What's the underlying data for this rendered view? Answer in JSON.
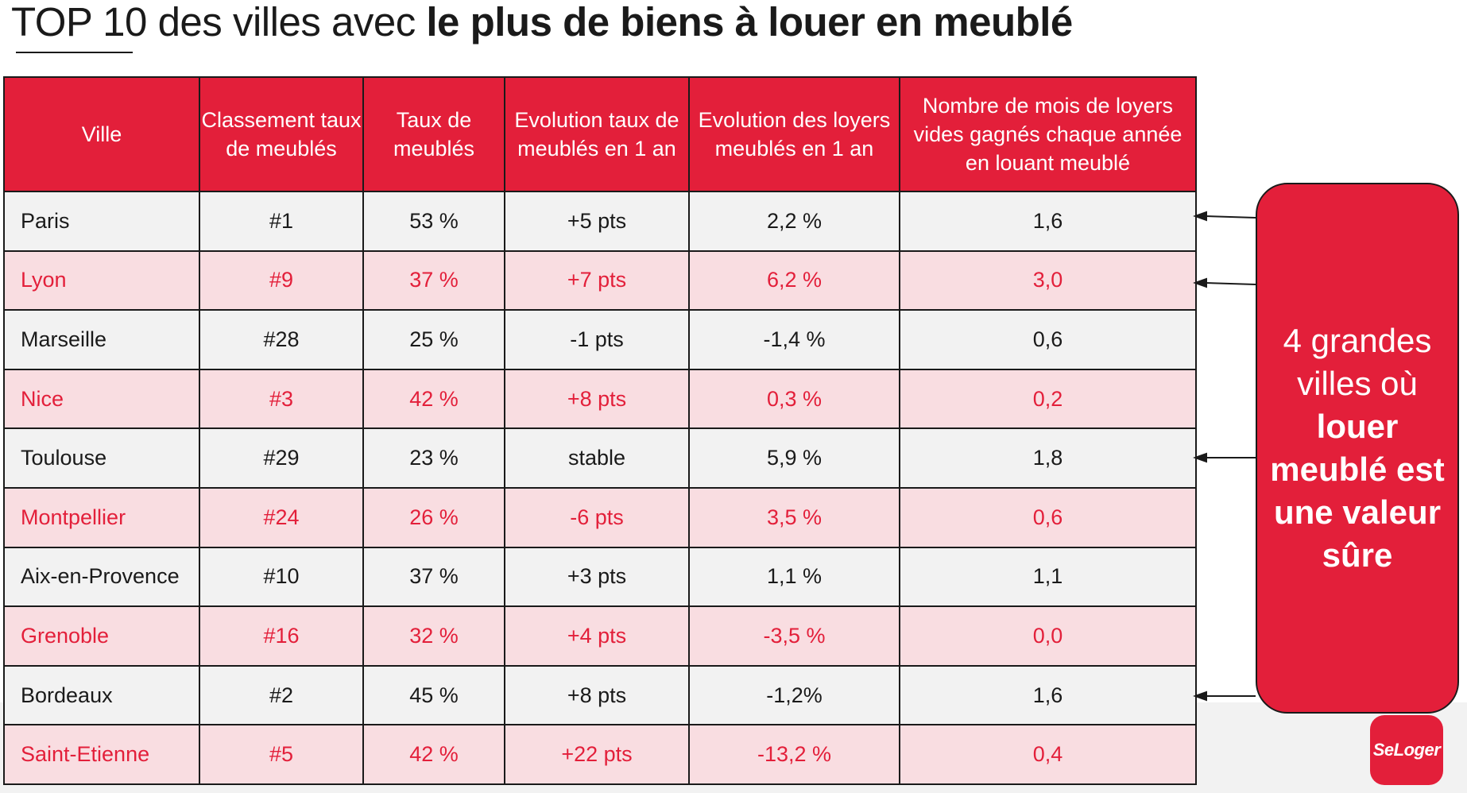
{
  "title": {
    "part1": "TOP 10 des villes avec",
    "part2": "le plus de biens à louer en meublé"
  },
  "table": {
    "headers": [
      "Ville",
      "Classement taux de meublés",
      "Taux de meublés",
      "Evolution taux de meublés en 1 an",
      "Evolution des loyers meublés en 1 an",
      "Nombre de mois de loyers vides gagnés chaque année en louant meublé"
    ],
    "rows": [
      [
        "Paris",
        "#1",
        "53 %",
        "+5 pts",
        "2,2 %",
        "1,6"
      ],
      [
        "Lyon",
        "#9",
        "37 %",
        "+7 pts",
        "6,2 %",
        "3,0"
      ],
      [
        "Marseille",
        "#28",
        "25 %",
        "-1 pts",
        "-1,4 %",
        "0,6"
      ],
      [
        "Nice",
        "#3",
        "42 %",
        "+8 pts",
        "0,3 %",
        "0,2"
      ],
      [
        "Toulouse",
        "#29",
        "23 %",
        "stable",
        "5,9 %",
        "1,8"
      ],
      [
        "Montpellier",
        "#24",
        "26 %",
        "-6 pts",
        "3,5 %",
        "0,6"
      ],
      [
        "Aix-en-Provence",
        "#10",
        "37 %",
        "+3 pts",
        "1,1 %",
        "1,1"
      ],
      [
        "Grenoble",
        "#16",
        "32 %",
        "+4 pts",
        "-3,5  %",
        "0,0"
      ],
      [
        "Bordeaux",
        "#2",
        "45 %",
        "+8 pts",
        "-1,2%",
        "1,6"
      ],
      [
        "Saint-Etienne",
        "#5",
        "42 %",
        "+22 pts",
        "-13,2 %",
        "0,4"
      ]
    ]
  },
  "callout": {
    "line1": "4 grandes",
    "line2": "villes où",
    "line3": "louer",
    "line4": "meublé est",
    "line5": "une valeur",
    "line6": "sûre"
  },
  "logo": {
    "text": "SeLoger"
  },
  "colors": {
    "accent": "#e31f3a",
    "pink_row": "#f9dde1",
    "grey_row": "#f2f2f2",
    "text": "#1a1a1a"
  }
}
